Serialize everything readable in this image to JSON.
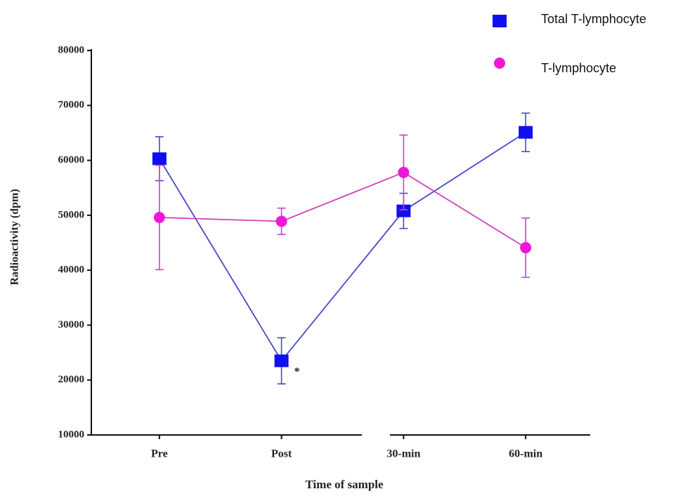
{
  "chart_data": {
    "type": "line",
    "y_label": "Radioactivity (dpm)",
    "x_label": "Time of sample",
    "categories": [
      "Pre",
      "Post",
      "30-min",
      "60-min"
    ],
    "series": [
      {
        "name": "Total T-lymphocyte",
        "color": "#1010ee",
        "marker": "square",
        "line_color": "#4848c8",
        "values": [
          60300,
          23500,
          50800,
          65100
        ],
        "errors": [
          4000,
          4200,
          3200,
          3500
        ]
      },
      {
        "name": "T-lymphocyte",
        "color": "#f018d8",
        "marker": "circle",
        "line_color": "#d040c0",
        "values": [
          49600,
          48900,
          57800,
          44100
        ],
        "errors": [
          9500,
          2400,
          6800,
          5400
        ]
      }
    ],
    "annotations": [
      {
        "text": "*",
        "category": 1,
        "value": 21400
      }
    ],
    "ylim": [
      10000,
      80000
    ],
    "yticks": [
      10000,
      20000,
      30000,
      40000,
      50000,
      60000,
      70000,
      80000
    ]
  }
}
